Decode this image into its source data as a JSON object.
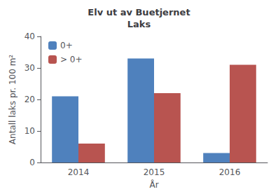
{
  "chart_data": {
    "type": "bar",
    "title": "Elv ut av Buetjernet\nLaks",
    "xlabel": "År",
    "ylabel": "Antall laks pr. 100 m²",
    "categories": [
      "2014",
      "2015",
      "2016"
    ],
    "series": [
      {
        "name": "0+",
        "color": "#4F81BD",
        "values": [
          21,
          33,
          3
        ]
      },
      {
        "name": "> 0+",
        "color": "#B85450",
        "values": [
          6,
          22,
          31
        ]
      }
    ],
    "ylim": [
      0,
      40
    ],
    "yticks": [
      0,
      10,
      20,
      30,
      40
    ],
    "grid": false,
    "legend": "upper left"
  }
}
